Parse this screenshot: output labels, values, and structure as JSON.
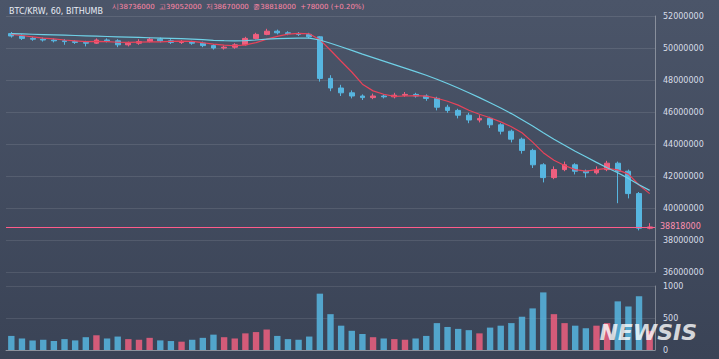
{
  "chart_data": {
    "type": "candlestick",
    "title": "BTC/KRW, 60, BITHUMB",
    "annotations": {
      "ohlc": [
        "시38736000",
        "고39052000",
        "저38670000",
        "종38818000",
        "+78000 (+0.20%)"
      ],
      "watermark": "NEWSIS"
    },
    "categories": [
      null,
      null,
      null,
      null,
      null,
      null,
      null,
      null,
      null,
      null,
      null,
      null,
      null,
      null,
      null,
      null,
      null,
      null,
      null,
      null,
      null,
      null,
      null,
      null,
      null,
      null,
      null,
      null,
      null,
      null,
      null,
      null,
      null,
      null,
      null,
      null,
      null,
      null,
      null,
      null,
      null,
      null,
      null,
      null,
      null,
      null,
      null,
      null,
      null,
      null,
      null,
      null,
      null,
      null,
      null,
      null,
      null,
      null,
      null,
      null,
      null
    ],
    "ylim": [
      36000000,
      52000000
    ],
    "yticks": [
      36000000,
      38000000,
      40000000,
      42000000,
      44000000,
      46000000,
      48000000,
      50000000,
      52000000
    ],
    "grid": true,
    "tick_labels": "y",
    "price_line": 38818000,
    "series": [
      {
        "type": "candlestick",
        "values": [
          [
            50900000,
            50750000,
            50650000,
            51000000
          ],
          [
            50750000,
            50600000,
            50500000,
            50850000
          ],
          [
            50600000,
            50550000,
            50450000,
            50700000
          ],
          [
            50550000,
            50500000,
            50400000,
            50650000
          ],
          [
            50500000,
            50450000,
            50350000,
            50600000
          ],
          [
            50450000,
            50400000,
            50200000,
            50550000
          ],
          [
            50400000,
            50350000,
            50250000,
            50500000
          ],
          [
            50350000,
            50300000,
            50100000,
            50450000
          ],
          [
            50300000,
            50500000,
            50250000,
            50600000
          ],
          [
            50500000,
            50450000,
            50350000,
            50600000
          ],
          [
            50450000,
            50200000,
            50050000,
            50550000
          ],
          [
            50200000,
            50300000,
            50100000,
            50400000
          ],
          [
            50300000,
            50400000,
            50200000,
            50550000
          ],
          [
            50400000,
            50550000,
            50350000,
            50650000
          ],
          [
            50550000,
            50450000,
            50350000,
            50650000
          ],
          [
            50450000,
            50350000,
            50250000,
            50550000
          ],
          [
            50350000,
            50400000,
            50250000,
            50500000
          ],
          [
            50400000,
            50300000,
            50200000,
            50450000
          ],
          [
            50300000,
            50150000,
            50050000,
            50400000
          ],
          [
            50150000,
            50000000,
            49900000,
            50250000
          ],
          [
            50000000,
            50050000,
            49900000,
            50150000
          ],
          [
            50050000,
            50200000,
            49950000,
            50300000
          ],
          [
            50200000,
            50600000,
            50150000,
            50700000
          ],
          [
            50600000,
            50850000,
            50550000,
            50950000
          ],
          [
            50850000,
            51050000,
            50800000,
            51200000
          ],
          [
            51050000,
            50950000,
            50850000,
            51150000
          ],
          [
            50950000,
            50900000,
            50800000,
            51050000
          ],
          [
            50900000,
            50850000,
            50750000,
            51000000
          ],
          [
            50850000,
            50700000,
            50600000,
            50950000
          ],
          [
            50700000,
            48100000,
            47900000,
            50750000
          ],
          [
            48100000,
            47500000,
            47300000,
            48300000
          ],
          [
            47500000,
            47200000,
            47000000,
            47700000
          ],
          [
            47200000,
            47000000,
            46850000,
            47350000
          ],
          [
            47000000,
            46900000,
            46750000,
            47100000
          ],
          [
            46900000,
            47000000,
            46800000,
            47150000
          ],
          [
            47000000,
            46950000,
            46850000,
            47100000
          ],
          [
            46950000,
            47050000,
            46850000,
            47200000
          ],
          [
            47050000,
            47100000,
            46950000,
            47250000
          ],
          [
            47100000,
            47000000,
            46900000,
            47200000
          ],
          [
            47000000,
            46850000,
            46700000,
            47100000
          ],
          [
            46850000,
            46300000,
            46100000,
            46950000
          ],
          [
            46300000,
            46100000,
            45950000,
            46450000
          ],
          [
            46100000,
            45800000,
            45600000,
            46200000
          ],
          [
            45800000,
            45500000,
            45300000,
            45950000
          ],
          [
            45500000,
            45600000,
            45350000,
            45800000
          ],
          [
            45600000,
            45200000,
            45000000,
            45700000
          ],
          [
            45200000,
            44800000,
            44600000,
            45300000
          ],
          [
            44800000,
            44300000,
            44100000,
            44900000
          ],
          [
            44300000,
            43600000,
            43400000,
            44400000
          ],
          [
            43600000,
            42700000,
            42500000,
            43700000
          ],
          [
            42700000,
            41900000,
            41600000,
            42800000
          ],
          [
            41900000,
            42400000,
            41800000,
            42600000
          ],
          [
            42400000,
            42700000,
            42300000,
            42900000
          ],
          [
            42700000,
            42300000,
            42100000,
            42800000
          ],
          [
            42300000,
            42200000,
            41900000,
            42400000
          ],
          [
            42200000,
            42400000,
            42100000,
            42600000
          ],
          [
            42400000,
            42800000,
            42300000,
            42950000
          ],
          [
            42800000,
            42300000,
            40300000,
            42900000
          ],
          [
            42300000,
            40900000,
            40600000,
            42400000
          ],
          [
            40900000,
            38740000,
            38600000,
            41000000
          ],
          [
            38736000,
            38818000,
            38670000,
            39052000
          ]
        ]
      },
      {
        "type": "line",
        "color": "#e8435a",
        "values": [
          50850000,
          50780000,
          50700000,
          50620000,
          50570000,
          50500000,
          50450000,
          50400000,
          50410000,
          50400000,
          50360000,
          50350000,
          50370000,
          50380000,
          50380000,
          50410000,
          50430000,
          50410000,
          50330000,
          50240000,
          50180000,
          50140000,
          50200000,
          50340000,
          50550000,
          50730000,
          50870000,
          50920000,
          50890000,
          50520000,
          49860000,
          49170000,
          48500000,
          47740000,
          47320000,
          47110000,
          46980000,
          47000000,
          47020000,
          46990000,
          46860000,
          46670000,
          46430000,
          46110000,
          45860000,
          45640000,
          45380000,
          45080000,
          44700000,
          44120000,
          43460000,
          42980000,
          42660000,
          42400000,
          42300000,
          42400000,
          42480000,
          42380000,
          42120000,
          41440000,
          40900000
        ]
      },
      {
        "type": "line",
        "color": "#6fd0e6",
        "values": [
          50900000,
          50880000,
          50860000,
          50840000,
          50820000,
          50800000,
          50780000,
          50760000,
          50740000,
          50720000,
          50700000,
          50680000,
          50660000,
          50640000,
          50620000,
          50600000,
          50580000,
          50550000,
          50520000,
          50480000,
          50460000,
          50450000,
          50460000,
          50500000,
          50550000,
          50580000,
          50600000,
          50620000,
          50620000,
          50500000,
          50300000,
          50080000,
          49850000,
          49620000,
          49400000,
          49180000,
          48960000,
          48740000,
          48520000,
          48300000,
          48050000,
          47780000,
          47500000,
          47200000,
          46900000,
          46580000,
          46250000,
          45900000,
          45520000,
          45120000,
          44700000,
          44300000,
          43920000,
          43550000,
          43200000,
          42850000,
          42520000,
          42200000,
          41850000,
          41450000,
          41100000
        ]
      }
    ],
    "volume": {
      "ylim": [
        0,
        1000
      ],
      "yticks": [
        0,
        500,
        1000
      ],
      "values": [
        220,
        180,
        150,
        160,
        140,
        170,
        150,
        200,
        230,
        180,
        210,
        170,
        160,
        190,
        150,
        140,
        130,
        160,
        190,
        240,
        200,
        180,
        260,
        280,
        320,
        220,
        170,
        160,
        210,
        880,
        560,
        380,
        300,
        250,
        200,
        180,
        170,
        160,
        180,
        220,
        420,
        360,
        330,
        310,
        260,
        350,
        380,
        420,
        520,
        650,
        900,
        560,
        420,
        380,
        340,
        380,
        420,
        760,
        680,
        840,
        300
      ]
    }
  }
}
